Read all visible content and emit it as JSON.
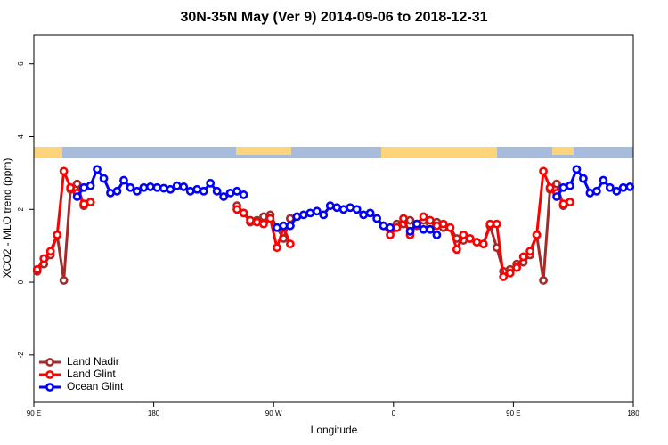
{
  "chart_data": {
    "type": "line",
    "title": "30N-35N May (Ver 9)   2014-09-06 to 2018-12-31",
    "x_label": "Longitude",
    "y_label": "XCO2 - MLO trend (ppm)",
    "xlim": [
      90,
      540
    ],
    "xticks": [
      {
        "value": 90,
        "label": "90 E"
      },
      {
        "value": 180,
        "label": "180"
      },
      {
        "value": 270,
        "label": "90 W"
      },
      {
        "value": 360,
        "label": "0"
      },
      {
        "value": 450,
        "label": "90 E"
      },
      {
        "value": 540,
        "label": "180"
      }
    ],
    "ylim": [
      -3.3,
      6.8
    ],
    "yticks": [
      -2,
      0,
      2,
      4,
      6
    ],
    "legend": "bottom-left",
    "series": [
      {
        "name": "Land Nadir",
        "color": "#a52a2a",
        "x": [
          92.5,
          97.5,
          102.5,
          107.5,
          112.5,
          117.5,
          122.5,
          127.5,
          132.5,
          137.5,
          242.5,
          247.5,
          252.5,
          257.5,
          262.5,
          267.5,
          272.5,
          277.5,
          282.5,
          287.5,
          352.5,
          357.5,
          362.5,
          367.5,
          372.5,
          377.5,
          382.5,
          387.5,
          392.5,
          397.5,
          402.5,
          407.5,
          412.5,
          417.5,
          422.5,
          427.5,
          432.5,
          437.5,
          442.5,
          447.5,
          452.5,
          457.5,
          462.5,
          467.5,
          472.5,
          477.5,
          482.5,
          487.5,
          492.5
        ],
        "values": [
          0.3,
          0.5,
          0.75,
          1.3,
          0.05,
          2.55,
          2.7,
          2.1,
          2.2,
          null,
          2.1,
          1.9,
          1.65,
          1.7,
          1.8,
          1.85,
          1.5,
          1.2,
          1.75,
          null,
          1.55,
          1.45,
          1.6,
          1.6,
          1.7,
          1.55,
          1.7,
          1.6,
          1.65,
          1.5,
          1.5,
          1.2,
          1.15,
          1.2,
          1.1,
          1.05,
          1.55,
          0.95,
          0.3,
          0.35,
          0.5,
          0.55,
          0.75,
          1.3,
          0.05,
          2.55,
          2.7,
          2.1,
          2.2
        ]
      },
      {
        "name": "Land Glint",
        "color": "#ff0000",
        "x": [
          92.5,
          97.5,
          102.5,
          107.5,
          112.5,
          117.5,
          122.5,
          127.5,
          132.5,
          137.5,
          242.5,
          247.5,
          252.5,
          257.5,
          262.5,
          267.5,
          272.5,
          277.5,
          282.5,
          287.5,
          352.5,
          357.5,
          362.5,
          367.5,
          372.5,
          377.5,
          382.5,
          387.5,
          392.5,
          397.5,
          402.5,
          407.5,
          412.5,
          417.5,
          422.5,
          427.5,
          432.5,
          437.5,
          442.5,
          447.5,
          452.5,
          457.5,
          462.5,
          467.5,
          472.5,
          477.5,
          482.5,
          487.5,
          492.5
        ],
        "values": [
          0.35,
          0.65,
          0.85,
          1.3,
          3.05,
          2.6,
          2.45,
          2.15,
          2.2,
          null,
          2.0,
          1.9,
          1.7,
          1.65,
          1.6,
          1.75,
          0.95,
          1.5,
          1.05,
          null,
          1.55,
          1.3,
          1.5,
          1.75,
          1.3,
          1.6,
          1.8,
          1.7,
          1.55,
          1.6,
          1.5,
          0.9,
          1.3,
          1.2,
          1.1,
          1.05,
          1.6,
          1.6,
          0.15,
          0.25,
          0.4,
          0.7,
          0.85,
          1.3,
          3.05,
          2.6,
          2.45,
          2.15,
          2.2
        ]
      },
      {
        "name": "Ocean Glint",
        "color": "#0000ff",
        "x": [
          122.5,
          127.5,
          132.5,
          137.5,
          142.5,
          147.5,
          152.5,
          157.5,
          162.5,
          167.5,
          172.5,
          177.5,
          182.5,
          187.5,
          192.5,
          197.5,
          202.5,
          207.5,
          212.5,
          217.5,
          222.5,
          227.5,
          232.5,
          237.5,
          242.5,
          247.5,
          252.5,
          272.5,
          277.5,
          282.5,
          287.5,
          292.5,
          297.5,
          302.5,
          307.5,
          312.5,
          317.5,
          322.5,
          327.5,
          332.5,
          337.5,
          342.5,
          347.5,
          352.5,
          357.5,
          362.5,
          372.5,
          377.5,
          382.5,
          387.5,
          392.5,
          397.5,
          482.5,
          487.5,
          492.5,
          497.5,
          502.5,
          507.5,
          512.5,
          517.5,
          522.5,
          527.5,
          532.5,
          537.5
        ],
        "values": [
          2.35,
          2.6,
          2.65,
          3.1,
          2.85,
          2.45,
          2.5,
          2.8,
          2.6,
          2.5,
          2.6,
          2.62,
          2.6,
          2.58,
          2.55,
          2.65,
          2.62,
          2.5,
          2.55,
          2.5,
          2.72,
          2.5,
          2.35,
          2.45,
          2.5,
          2.4,
          null,
          1.5,
          1.55,
          1.55,
          1.8,
          1.85,
          1.9,
          1.95,
          1.85,
          2.1,
          2.05,
          2.0,
          2.05,
          2.0,
          1.85,
          1.9,
          1.75,
          1.55,
          1.5,
          null,
          1.4,
          1.6,
          1.45,
          1.45,
          1.3,
          null,
          2.35,
          2.6,
          2.65,
          3.1,
          2.85,
          2.45,
          2.5,
          2.8,
          2.6,
          2.5,
          2.6,
          2.62
        ]
      }
    ]
  }
}
